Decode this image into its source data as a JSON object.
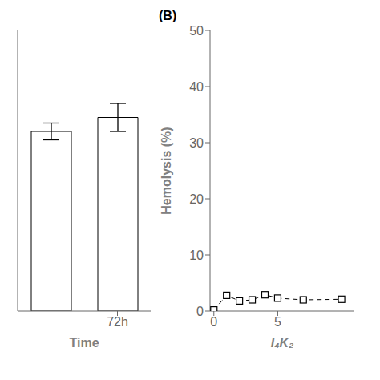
{
  "chart_data": [
    {
      "type": "bar",
      "categories": [
        null,
        "72h"
      ],
      "values": [
        32.0,
        34.5
      ],
      "errors": [
        1.5,
        2.5
      ],
      "color": "white",
      "x_label": "Time",
      "ylim": [
        0,
        50
      ],
      "tick_labels": "x"
    },
    {
      "type": "line",
      "annotation": "(B)",
      "x": [
        0,
        1,
        2,
        3,
        4,
        5,
        7,
        10
      ],
      "values": [
        0.2,
        2.8,
        1.8,
        2.0,
        2.9,
        2.3,
        2.0,
        2.1
      ],
      "x_label": "I₄K₂",
      "y_label": "Hemolysis (%)",
      "xlim": [
        -0.3,
        11
      ],
      "ylim": [
        0,
        50
      ],
      "xticks": [
        0,
        5
      ],
      "yticks": [
        0,
        10,
        20,
        30,
        40,
        50
      ],
      "color": "black",
      "marker": "square",
      "line_style": "dashed"
    }
  ]
}
